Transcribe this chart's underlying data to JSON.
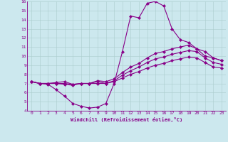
{
  "xlabel": "Windchill (Refroidissement éolien,°C)",
  "background_color": "#cce8ee",
  "line_color": "#880088",
  "grid_color": "#aacccc",
  "xlim": [
    -0.5,
    23.5
  ],
  "ylim": [
    4,
    16
  ],
  "xticks": [
    0,
    1,
    2,
    3,
    4,
    5,
    6,
    7,
    8,
    9,
    10,
    11,
    12,
    13,
    14,
    15,
    16,
    17,
    18,
    19,
    20,
    21,
    22,
    23
  ],
  "yticks": [
    4,
    5,
    6,
    7,
    8,
    9,
    10,
    11,
    12,
    13,
    14,
    15,
    16
  ],
  "series": [
    [
      7.2,
      7.0,
      6.9,
      6.3,
      5.6,
      4.8,
      4.5,
      4.3,
      4.4,
      4.8,
      7.0,
      10.5,
      14.4,
      14.2,
      15.8,
      16.0,
      15.5,
      13.0,
      11.8,
      11.5,
      10.8,
      10.0,
      9.8,
      9.5
    ],
    [
      7.2,
      7.0,
      7.0,
      7.1,
      7.2,
      6.9,
      7.0,
      7.0,
      7.3,
      7.2,
      7.5,
      8.2,
      8.8,
      9.2,
      9.8,
      10.3,
      10.5,
      10.8,
      11.0,
      11.2,
      10.8,
      10.5,
      9.8,
      9.5
    ],
    [
      7.2,
      7.0,
      7.0,
      7.0,
      6.9,
      6.8,
      7.0,
      7.0,
      7.2,
      7.0,
      7.3,
      7.9,
      8.4,
      8.8,
      9.3,
      9.7,
      9.9,
      10.2,
      10.4,
      10.6,
      10.5,
      9.8,
      9.3,
      9.1
    ],
    [
      7.2,
      7.0,
      7.0,
      7.0,
      7.0,
      6.9,
      7.0,
      7.0,
      7.0,
      7.0,
      7.2,
      7.6,
      8.0,
      8.3,
      8.7,
      9.0,
      9.2,
      9.5,
      9.7,
      9.9,
      9.8,
      9.3,
      8.8,
      8.7
    ]
  ]
}
